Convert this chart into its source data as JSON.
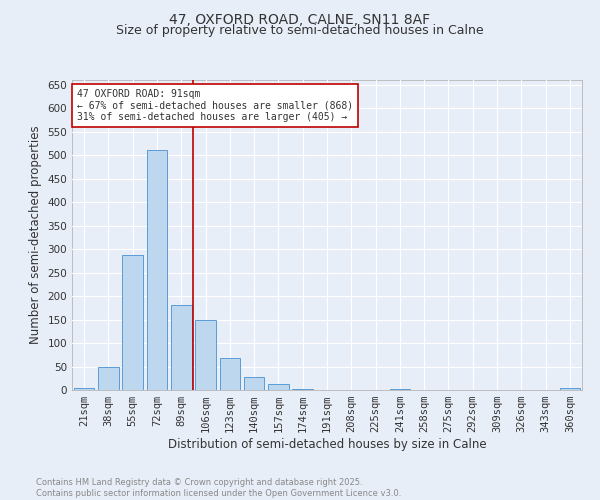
{
  "title": "47, OXFORD ROAD, CALNE, SN11 8AF",
  "subtitle": "Size of property relative to semi-detached houses in Calne",
  "xlabel": "Distribution of semi-detached houses by size in Calne",
  "ylabel": "Number of semi-detached properties",
  "categories": [
    "21sqm",
    "38sqm",
    "55sqm",
    "72sqm",
    "89sqm",
    "106sqm",
    "123sqm",
    "140sqm",
    "157sqm",
    "174sqm",
    "191sqm",
    "208sqm",
    "225sqm",
    "241sqm",
    "258sqm",
    "275sqm",
    "292sqm",
    "309sqm",
    "326sqm",
    "343sqm",
    "360sqm"
  ],
  "values": [
    5,
    50,
    288,
    512,
    181,
    150,
    68,
    27,
    13,
    2,
    0,
    0,
    0,
    2,
    0,
    0,
    0,
    0,
    0,
    0,
    5
  ],
  "bar_color": "#bdd7ee",
  "bar_edge_color": "#5b9bd5",
  "bar_width": 0.85,
  "vline_x_index": 4,
  "vline_color": "#c00000",
  "annotation_text": "47 OXFORD ROAD: 91sqm\n← 67% of semi-detached houses are smaller (868)\n31% of semi-detached houses are larger (405) →",
  "annotation_box_color": "#ffffff",
  "annotation_box_edge_color": "#c00000",
  "ylim": [
    0,
    660
  ],
  "yticks": [
    0,
    50,
    100,
    150,
    200,
    250,
    300,
    350,
    400,
    450,
    500,
    550,
    600,
    650
  ],
  "background_color": "#e8eef8",
  "grid_color": "#ffffff",
  "footer_text": "Contains HM Land Registry data © Crown copyright and database right 2025.\nContains public sector information licensed under the Open Government Licence v3.0.",
  "title_fontsize": 10,
  "subtitle_fontsize": 9,
  "axis_label_fontsize": 8.5,
  "tick_fontsize": 7.5,
  "annotation_fontsize": 7,
  "footer_fontsize": 6
}
